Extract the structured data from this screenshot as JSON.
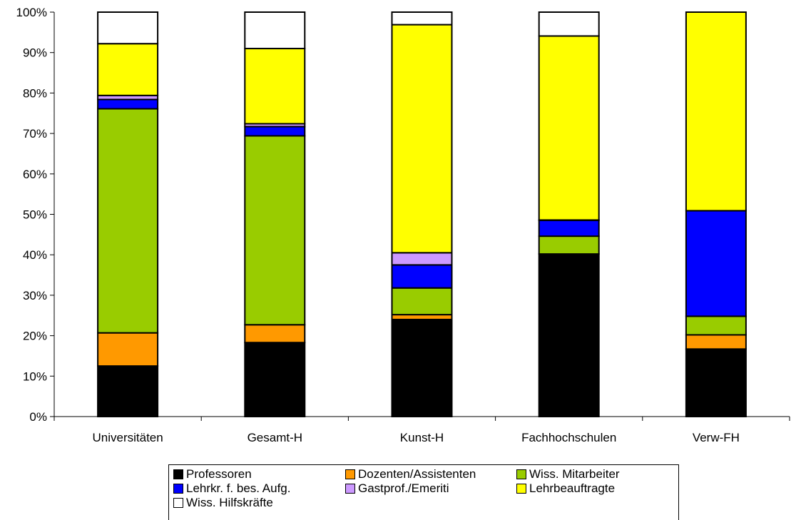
{
  "chart_data": {
    "type": "bar",
    "stacked": true,
    "normalized": true,
    "categories": [
      "Universitäten",
      "Gesamt-H",
      "Kunst-H",
      "Fachhochschulen",
      "Verw-FH"
    ],
    "yticks": [
      "0%",
      "10%",
      "20%",
      "30%",
      "40%",
      "50%",
      "60%",
      "70%",
      "80%",
      "90%",
      "100%"
    ],
    "ylim": [
      0,
      100
    ],
    "grid": false,
    "legend_position": "bottom",
    "series": [
      {
        "name": "Professoren",
        "color": "#000000",
        "values": [
          12.5,
          18.3,
          24.0,
          40.2,
          16.7
        ]
      },
      {
        "name": "Dozenten/Assistenten",
        "color": "#ff9900",
        "values": [
          8.2,
          4.4,
          1.2,
          0.0,
          3.5
        ]
      },
      {
        "name": "Wiss. Mitarbeiter",
        "color": "#99cc00",
        "values": [
          55.4,
          46.7,
          6.6,
          4.4,
          4.6
        ]
      },
      {
        "name": "Lehrkr. f. bes. Aufg.",
        "color": "#0000ff",
        "values": [
          2.3,
          2.3,
          5.7,
          3.9,
          26.1
        ]
      },
      {
        "name": "Gastprof./Emeriti",
        "color": "#cc99ff",
        "values": [
          1.0,
          0.7,
          3.0,
          0.1,
          0.0
        ]
      },
      {
        "name": "Lehrbeauftragte",
        "color": "#ffff00",
        "values": [
          12.8,
          18.6,
          56.4,
          45.5,
          49.1
        ]
      },
      {
        "name": "Wiss. Hilfskräfte",
        "color": "#ffffff",
        "values": [
          7.8,
          9.0,
          3.1,
          5.9,
          0.0
        ]
      }
    ]
  }
}
